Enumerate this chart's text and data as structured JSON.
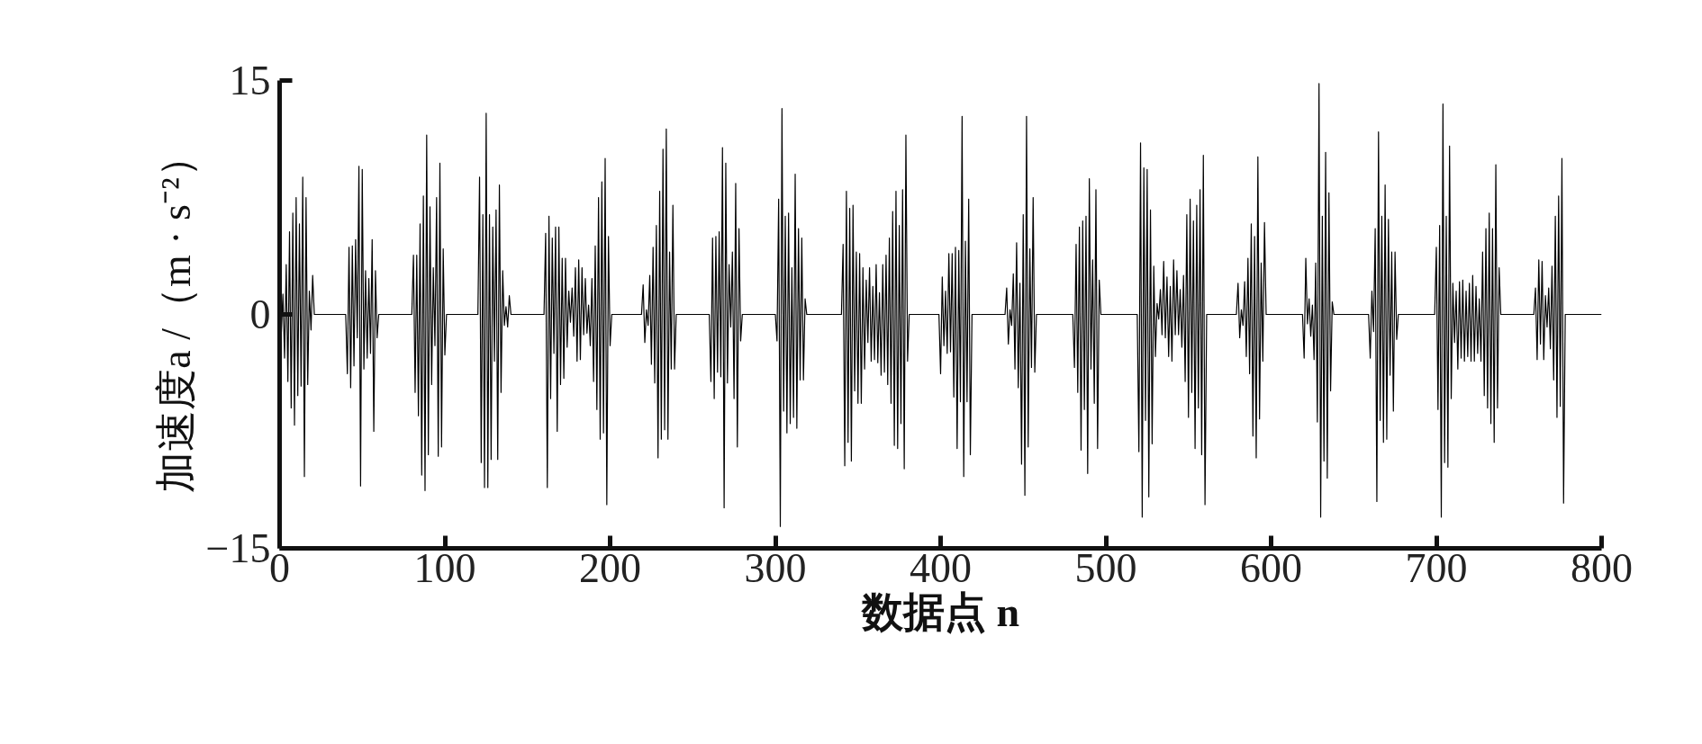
{
  "chart_data": {
    "type": "line",
    "xlabel": "数据点 n",
    "ylabel": "加速度a /（m · s⁻²）",
    "xlim": [
      0,
      800
    ],
    "ylim": [
      -15,
      15
    ],
    "xticks": [
      0,
      100,
      200,
      300,
      400,
      500,
      600,
      700,
      800
    ],
    "yticks": [
      -15,
      0,
      15
    ],
    "grid": false,
    "series": [
      {
        "color": "#000000",
        "x": [
          0,
          1,
          2,
          3,
          4,
          5,
          6,
          7,
          8,
          9,
          10,
          11,
          12,
          13,
          14,
          15,
          16,
          17,
          18,
          19,
          20,
          21,
          40,
          41,
          42,
          43,
          44,
          45,
          46,
          47,
          48,
          49,
          50,
          51,
          52,
          53,
          54,
          55,
          56,
          57,
          58,
          59,
          60,
          61,
          80,
          81,
          82,
          83,
          84,
          85,
          86,
          87,
          88,
          89,
          90,
          91,
          92,
          93,
          94,
          95,
          96,
          97,
          98,
          99,
          100,
          101,
          120,
          121,
          122,
          123,
          124,
          125,
          126,
          127,
          128,
          129,
          130,
          131,
          132,
          133,
          134,
          135,
          136,
          137,
          138,
          139,
          140,
          141,
          160,
          161,
          162,
          163,
          164,
          165,
          166,
          167,
          168,
          169,
          170,
          171,
          172,
          173,
          174,
          175,
          176,
          177,
          178,
          179,
          180,
          181,
          182,
          183,
          184,
          185,
          186,
          187,
          188,
          189,
          190,
          191,
          192,
          193,
          194,
          195,
          196,
          197,
          198,
          199,
          200,
          201,
          219,
          220,
          221,
          222,
          223,
          224,
          225,
          226,
          227,
          228,
          229,
          230,
          231,
          232,
          233,
          234,
          235,
          236,
          237,
          238,
          239,
          240,
          260,
          261,
          262,
          263,
          264,
          265,
          266,
          267,
          268,
          269,
          270,
          271,
          272,
          273,
          274,
          275,
          276,
          277,
          278,
          279,
          280,
          281,
          300,
          301,
          302,
          303,
          304,
          305,
          306,
          307,
          308,
          309,
          310,
          311,
          312,
          313,
          314,
          315,
          316,
          317,
          318,
          319,
          320,
          321,
          340,
          341,
          342,
          343,
          344,
          345,
          346,
          347,
          348,
          349,
          350,
          351,
          352,
          353,
          354,
          355,
          356,
          357,
          358,
          359,
          360,
          361,
          362,
          363,
          364,
          365,
          366,
          367,
          368,
          369,
          370,
          371,
          372,
          373,
          374,
          375,
          376,
          377,
          378,
          379,
          380,
          381,
          399,
          400,
          401,
          402,
          403,
          404,
          405,
          406,
          407,
          408,
          409,
          410,
          411,
          412,
          413,
          414,
          415,
          416,
          417,
          418,
          419,
          420,
          439,
          440,
          441,
          442,
          443,
          444,
          445,
          446,
          447,
          448,
          449,
          450,
          451,
          452,
          453,
          454,
          455,
          456,
          457,
          458,
          459,
          460,
          480,
          481,
          482,
          483,
          484,
          485,
          486,
          487,
          488,
          489,
          490,
          491,
          492,
          493,
          494,
          495,
          496,
          497,
          498,
          499,
          500,
          501,
          519,
          520,
          521,
          522,
          523,
          524,
          525,
          526,
          527,
          528,
          529,
          530,
          531,
          532,
          533,
          534,
          535,
          536,
          537,
          538,
          539,
          540,
          541,
          542,
          543,
          544,
          545,
          546,
          547,
          548,
          549,
          550,
          551,
          552,
          553,
          554,
          555,
          556,
          557,
          558,
          559,
          560,
          561,
          579,
          580,
          581,
          582,
          583,
          584,
          585,
          586,
          587,
          588,
          589,
          590,
          591,
          592,
          593,
          594,
          595,
          596,
          597,
          598,
          599,
          600,
          619,
          620,
          621,
          622,
          623,
          624,
          625,
          626,
          627,
          628,
          629,
          630,
          631,
          632,
          633,
          634,
          635,
          636,
          637,
          638,
          639,
          640,
          659,
          660,
          661,
          662,
          663,
          664,
          665,
          666,
          667,
          668,
          669,
          670,
          671,
          672,
          673,
          674,
          675,
          676,
          677,
          678,
          679,
          680,
          699,
          700,
          701,
          702,
          703,
          704,
          705,
          706,
          707,
          708,
          709,
          710,
          711,
          712,
          713,
          714,
          715,
          716,
          717,
          718,
          719,
          720,
          721,
          722,
          723,
          724,
          725,
          726,
          727,
          728,
          729,
          730,
          731,
          732,
          733,
          734,
          735,
          736,
          737,
          738,
          739,
          740,
          759,
          760,
          761,
          762,
          763,
          764,
          765,
          766,
          767,
          768,
          769,
          770,
          771,
          772,
          773,
          774,
          775,
          776,
          777,
          778,
          779,
          780,
          800
        ],
        "values": [
          0,
          -1.3,
          1.3,
          -2.8,
          3.2,
          -4.3,
          5.3,
          -6,
          6.5,
          -7.1,
          7.5,
          -5.2,
          5.8,
          -4.6,
          8.8,
          -10.4,
          7.5,
          -4.5,
          1.5,
          -1,
          2.5,
          0,
          0,
          -3.8,
          4.3,
          -4.7,
          4.4,
          -3.3,
          4.8,
          -1.5,
          9.5,
          -11,
          9.3,
          -3.5,
          2.8,
          -2.8,
          2.3,
          -2.5,
          4.8,
          -7.5,
          2.8,
          -1.5,
          0,
          0,
          0,
          3.8,
          -5,
          3.8,
          -6.5,
          5.8,
          -10.3,
          7.6,
          -11.3,
          11.5,
          -9,
          6.9,
          -4.5,
          3,
          -2,
          7.5,
          -9.1,
          9.7,
          -8.5,
          4.2,
          -2.6,
          0,
          0,
          8.8,
          -9.5,
          6.4,
          -11.1,
          12.9,
          -11.1,
          6.4,
          -9.3,
          5.6,
          -3,
          6.7,
          -9.3,
          8.3,
          -5,
          2.8,
          -0.7,
          0.5,
          -0.8,
          1.2,
          0,
          0,
          0,
          5.2,
          -11.1,
          6.3,
          -5.4,
          4.9,
          -2.5,
          5.6,
          -7.5,
          5.6,
          -4.5,
          3.6,
          -4.1,
          3.6,
          -2.1,
          1.5,
          -0.5,
          1.7,
          -1.4,
          3,
          -3,
          3.5,
          -2.9,
          3,
          -1.3,
          2.3,
          -1.2,
          0.6,
          -2,
          2.3,
          -4.3,
          4.4,
          -6.1,
          7.5,
          -8,
          8.5,
          -7.6,
          10,
          -12.2,
          5,
          -2,
          0,
          0,
          1.9,
          -1.8,
          0.3,
          -0.7,
          2.5,
          -3.2,
          4.3,
          -4.4,
          5.7,
          -9.2,
          7.9,
          -8,
          10.6,
          -7.4,
          11.9,
          -8,
          4,
          -3.5,
          7,
          -3.5,
          0,
          0,
          -4.3,
          4.9,
          -5.4,
          5,
          -3.7,
          5.3,
          -4,
          10.7,
          -12.4,
          9.7,
          -4.4,
          3.2,
          -0.8,
          4,
          -5.4,
          8.4,
          -8.5,
          5.5,
          -1.7,
          0,
          0,
          0,
          -1.7,
          7.4,
          -13.6,
          13.2,
          -6.2,
          6.3,
          -7.6,
          6.5,
          -7,
          3,
          -6.6,
          9,
          -7.3,
          5.5,
          -4.2,
          4.9,
          -4.2,
          1,
          0,
          0,
          0,
          0,
          4.5,
          -9.7,
          7.9,
          -8.2,
          6.8,
          -9.4,
          7,
          -4.9,
          4,
          -5.7,
          3.9,
          -5.7,
          3,
          -3.5,
          2.2,
          -1.8,
          3,
          -3,
          1.8,
          -2.9,
          3.2,
          -3.1,
          1.4,
          -3.9,
          3.2,
          -3.7,
          3.8,
          -4.5,
          4.9,
          -5.7,
          6.6,
          -8.4,
          7.9,
          -8.6,
          5.7,
          -7,
          8,
          -9.9,
          11.5,
          -3,
          0,
          0,
          -3.8,
          2.4,
          -2,
          1.5,
          -2.5,
          3.9,
          -2.4,
          3.9,
          -5.3,
          4.3,
          -8.6,
          4.1,
          -5.6,
          12.7,
          -10.4,
          4.7,
          -5.6,
          7.4,
          -9,
          0,
          0,
          0,
          1.7,
          -1.9,
          0.3,
          -0.7,
          2.6,
          -3.5,
          4.6,
          -4.7,
          2,
          -9.6,
          6.4,
          -11.6,
          12.7,
          -8.5,
          4.2,
          -3.4,
          7.5,
          -3.7,
          0,
          0,
          0,
          0,
          -3.4,
          4.5,
          -5,
          5.6,
          -8.7,
          6,
          -6.1,
          6.3,
          -10.2,
          8.7,
          -3.5,
          3.5,
          -5.7,
          8,
          -8.6,
          2.2,
          0,
          0,
          0,
          0,
          0,
          0,
          -8.8,
          11,
          -13,
          9.4,
          -6.8,
          9.3,
          -11.7,
          6.7,
          -8.3,
          3.1,
          -2.7,
          0.7,
          -0.3,
          1.6,
          -1.3,
          3.4,
          -1.5,
          2.4,
          -2.7,
          1.8,
          -3,
          3.5,
          -1.3,
          2.8,
          -1.3,
          1.6,
          -2.1,
          2.5,
          -4.3,
          6.4,
          -6.6,
          7.4,
          -5,
          6,
          -8.6,
          7,
          -6,
          8,
          -9,
          10.2,
          -12.2,
          0,
          0,
          2,
          -1.5,
          0.3,
          -0.7,
          2.1,
          -2.7,
          3.6,
          -3.8,
          5.8,
          -7.8,
          5,
          -9.2,
          10.1,
          -6.7,
          3.3,
          -3,
          5.9,
          0,
          0,
          0,
          0,
          0,
          -2.8,
          3.6,
          -0.6,
          1,
          -1.4,
          0.6,
          -2.9,
          3.3,
          -6.9,
          14.8,
          -13,
          6.3,
          -9.4,
          10.4,
          -10.5,
          7.8,
          -4.9,
          0.8,
          0,
          0,
          0,
          0,
          -2.8,
          1.5,
          -1.1,
          5.5,
          -12,
          11.7,
          -6.8,
          6.3,
          -8.2,
          8.3,
          -8,
          6.1,
          -3.9,
          4,
          -6.2,
          4,
          -1.6,
          0,
          0,
          0,
          0,
          0,
          4.3,
          -6.1,
          5.7,
          -13,
          13.5,
          -9.5,
          6.3,
          -9.8,
          10.8,
          -5.4,
          2,
          -1.8,
          1.5,
          -3.5,
          2.1,
          -2.8,
          2.2,
          -3,
          1.5,
          -2.7,
          2,
          -3,
          2.5,
          -3,
          1.8,
          -2.5,
          1,
          -3,
          4,
          -5.2,
          5.5,
          -6,
          6.5,
          -7,
          5.5,
          -8.2,
          9.6,
          -6,
          3,
          0,
          0,
          0,
          1.7,
          -2.9,
          3.5,
          -1.9,
          3.4,
          -2.9,
          1.2,
          -0.8,
          1.7,
          -2.2,
          3.1,
          -4.2,
          6.3,
          -6.6,
          7.6,
          -5.9,
          10,
          -12.1,
          0,
          0,
          0,
          0
        ]
      }
    ]
  }
}
